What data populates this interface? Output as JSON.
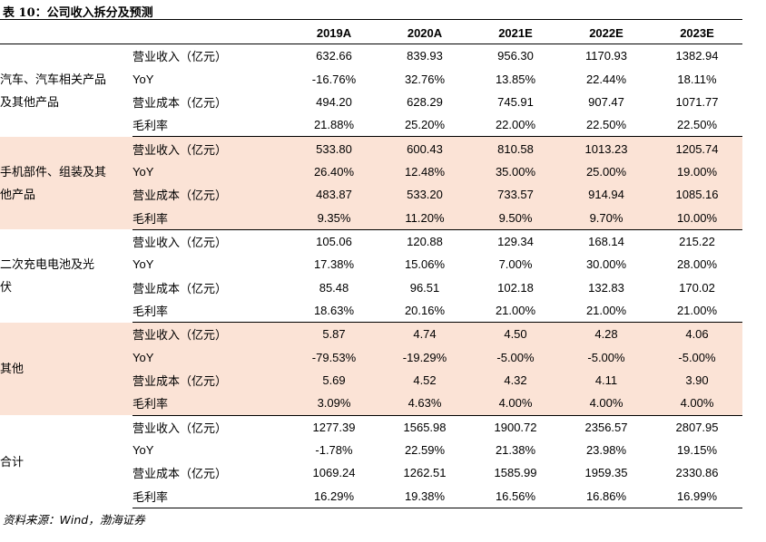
{
  "title": "表 10：公司收入拆分及预测",
  "columns": [
    "",
    "",
    "2019A",
    "2020A",
    "2021E",
    "2022E",
    "2023E"
  ],
  "groups": [
    {
      "name": "汽车、汽车相关产品及其他产品",
      "name_lines": [
        "汽车、汽车相关产品",
        "及其他产品"
      ],
      "shaded": false,
      "rows": [
        {
          "metric": "营业收入（亿元）",
          "values": [
            "632.66",
            "839.93",
            "956.30",
            "1170.93",
            "1382.94"
          ]
        },
        {
          "metric": "YoY",
          "values": [
            "-16.76%",
            "32.76%",
            "13.85%",
            "22.44%",
            "18.11%"
          ]
        },
        {
          "metric": "营业成本（亿元）",
          "values": [
            "494.20",
            "628.29",
            "745.91",
            "907.47",
            "1071.77"
          ]
        },
        {
          "metric": "毛利率",
          "values": [
            "21.88%",
            "25.20%",
            "22.00%",
            "22.50%",
            "22.50%"
          ]
        }
      ]
    },
    {
      "name": "手机部件、组装及其他产品",
      "name_lines": [
        "手机部件、组装及其",
        "他产品"
      ],
      "shaded": true,
      "rows": [
        {
          "metric": "营业收入（亿元）",
          "values": [
            "533.80",
            "600.43",
            "810.58",
            "1013.23",
            "1205.74"
          ]
        },
        {
          "metric": "YoY",
          "values": [
            "26.40%",
            "12.48%",
            "35.00%",
            "25.00%",
            "19.00%"
          ]
        },
        {
          "metric": "营业成本（亿元）",
          "values": [
            "483.87",
            "533.20",
            "733.57",
            "914.94",
            "1085.16"
          ]
        },
        {
          "metric": "毛利率",
          "values": [
            "9.35%",
            "11.20%",
            "9.50%",
            "9.70%",
            "10.00%"
          ]
        }
      ]
    },
    {
      "name": "二次充电电池及光伏",
      "name_lines": [
        "二次充电电池及光",
        "伏"
      ],
      "shaded": false,
      "rows": [
        {
          "metric": "营业收入（亿元）",
          "values": [
            "105.06",
            "120.88",
            "129.34",
            "168.14",
            "215.22"
          ]
        },
        {
          "metric": "YoY",
          "values": [
            "17.38%",
            "15.06%",
            "7.00%",
            "30.00%",
            "28.00%"
          ]
        },
        {
          "metric": "营业成本（亿元）",
          "values": [
            "85.48",
            "96.51",
            "102.18",
            "132.83",
            "170.02"
          ]
        },
        {
          "metric": "毛利率",
          "values": [
            "18.63%",
            "20.16%",
            "21.00%",
            "21.00%",
            "21.00%"
          ]
        }
      ]
    },
    {
      "name": "其他",
      "name_lines": [
        "其他"
      ],
      "shaded": true,
      "rows": [
        {
          "metric": "营业收入（亿元）",
          "values": [
            "5.87",
            "4.74",
            "4.50",
            "4.28",
            "4.06"
          ]
        },
        {
          "metric": "YoY",
          "values": [
            "-79.53%",
            "-19.29%",
            "-5.00%",
            "-5.00%",
            "-5.00%"
          ]
        },
        {
          "metric": "营业成本（亿元）",
          "values": [
            "5.69",
            "4.52",
            "4.32",
            "4.11",
            "3.90"
          ]
        },
        {
          "metric": "毛利率",
          "values": [
            "3.09%",
            "4.63%",
            "4.00%",
            "4.00%",
            "4.00%"
          ]
        }
      ]
    },
    {
      "name": "合计",
      "name_lines": [
        "合计"
      ],
      "shaded": false,
      "rows": [
        {
          "metric": "营业收入（亿元）",
          "values": [
            "1277.39",
            "1565.98",
            "1900.72",
            "2356.57",
            "2807.95"
          ]
        },
        {
          "metric": "YoY",
          "values": [
            "-1.78%",
            "22.59%",
            "21.38%",
            "23.98%",
            "19.15%"
          ]
        },
        {
          "metric": "营业成本（亿元）",
          "values": [
            "1069.24",
            "1262.51",
            "1585.99",
            "1959.35",
            "2330.86"
          ]
        },
        {
          "metric": "毛利率",
          "values": [
            "16.29%",
            "19.38%",
            "16.56%",
            "16.86%",
            "16.99%"
          ]
        }
      ]
    }
  ],
  "source": "资料来源：Wind，渤海证券",
  "colors": {
    "shade": "#fbe3d6",
    "rule": "#000000"
  }
}
